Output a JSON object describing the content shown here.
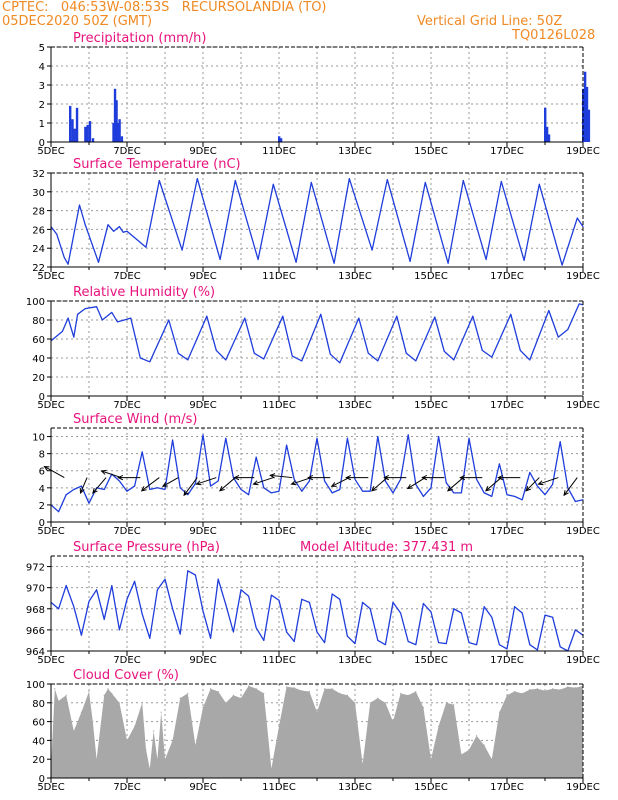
{
  "header": {
    "station_line": "CPTEC:   046:53W-08:53S   RECURSOLANDIA (TO)",
    "run_line": "05DEC2020 50Z (GMT)",
    "grid_line": "Vertical Grid Line: 50Z",
    "code": "TQ0126L028"
  },
  "colors": {
    "header": "#f08a24",
    "title": "#e8127c",
    "line": "#1f3ddb",
    "bar": "#1f3ddb",
    "cloud": "#a8a8a8",
    "arrow": "#000000"
  },
  "x_ticks": [
    "5DEC",
    "7DEC",
    "9DEC",
    "11DEC",
    "13DEC",
    "15DEC",
    "17DEC",
    "19DEC"
  ],
  "chart_data": [
    {
      "id": "precip",
      "type": "bar",
      "title": "Precipitation (mm/h)",
      "ylim": [
        0,
        5
      ],
      "yticks": [
        0,
        1,
        2,
        3,
        4,
        5
      ],
      "x_unit": "days since 5DEC 00Z",
      "x": [
        0.5,
        0.56,
        0.62,
        0.68,
        0.9,
        0.96,
        1.02,
        1.1,
        1.64,
        1.68,
        1.72,
        1.76,
        1.8,
        1.86,
        6.0,
        6.05,
        13.0,
        13.05,
        13.1,
        14.0,
        14.05,
        14.1,
        14.15
      ],
      "values": [
        1.9,
        1.2,
        0.7,
        1.8,
        0.8,
        0.9,
        1.1,
        0.2,
        1.0,
        2.8,
        2.2,
        1.0,
        1.2,
        0.3,
        0.3,
        0.2,
        1.8,
        0.8,
        0.4,
        2.8,
        3.7,
        2.9,
        1.7
      ]
    },
    {
      "id": "temp",
      "type": "line",
      "title": "Surface Temperature (nC)",
      "ylim": [
        22,
        32
      ],
      "yticks": [
        22,
        24,
        26,
        28,
        30,
        32
      ],
      "x_unit": "days since 5DEC 00Z",
      "x": [
        0.0,
        0.15,
        0.35,
        0.45,
        0.75,
        0.9,
        1.25,
        1.5,
        1.65,
        1.8,
        1.9,
        2.0,
        2.5,
        2.85,
        3.45,
        3.85,
        4.45,
        4.85,
        5.45,
        5.85,
        6.45,
        6.85,
        7.45,
        7.85,
        8.45,
        8.85,
        9.45,
        9.85,
        10.45,
        10.85,
        11.45,
        11.85,
        12.45,
        12.85,
        13.45,
        13.85,
        14.0
      ],
      "values": [
        26.3,
        25.5,
        23.0,
        22.3,
        28.6,
        26.5,
        22.5,
        26.5,
        25.8,
        26.3,
        25.7,
        25.8,
        24.1,
        31.2,
        23.8,
        31.4,
        22.8,
        31.2,
        22.8,
        30.8,
        22.5,
        31.0,
        22.4,
        31.4,
        23.8,
        31.3,
        22.6,
        31.0,
        22.4,
        31.2,
        22.8,
        31.1,
        22.7,
        30.8,
        22.2,
        27.2,
        26.3
      ]
    },
    {
      "id": "rh",
      "type": "line",
      "title": "Relative Humidity (%)",
      "ylim": [
        0,
        100
      ],
      "yticks": [
        0,
        20,
        40,
        60,
        80,
        100
      ],
      "x_unit": "days since 5DEC 00Z",
      "x": [
        0.0,
        0.3,
        0.45,
        0.6,
        0.7,
        0.9,
        1.2,
        1.35,
        1.6,
        1.75,
        2.1,
        2.35,
        2.6,
        3.1,
        3.35,
        3.6,
        4.1,
        4.35,
        4.6,
        5.1,
        5.35,
        5.6,
        6.1,
        6.35,
        6.6,
        7.1,
        7.35,
        7.6,
        8.1,
        8.35,
        8.6,
        9.1,
        9.35,
        9.6,
        10.1,
        10.35,
        10.6,
        11.1,
        11.35,
        11.6,
        12.1,
        12.35,
        12.6,
        13.1,
        13.35,
        13.6,
        13.9,
        14.0
      ],
      "values": [
        58,
        68,
        82,
        62,
        86,
        92,
        94,
        80,
        88,
        78,
        82,
        40,
        36,
        80,
        45,
        38,
        84,
        48,
        38,
        82,
        45,
        39,
        84,
        42,
        37,
        86,
        44,
        35,
        82,
        45,
        37,
        84,
        45,
        37,
        83,
        47,
        38,
        84,
        48,
        41,
        86,
        48,
        38,
        90,
        62,
        70,
        97,
        96
      ]
    },
    {
      "id": "wind",
      "type": "line",
      "title": "Surface Wind (m/s)",
      "ylim": [
        0,
        11
      ],
      "yticks": [
        0,
        2,
        4,
        6,
        8,
        10
      ],
      "x_unit": "days since 5DEC 00Z",
      "x": [
        0.0,
        0.2,
        0.4,
        0.6,
        0.8,
        1.0,
        1.2,
        1.4,
        1.6,
        1.8,
        2.0,
        2.2,
        2.4,
        2.6,
        2.8,
        3.0,
        3.2,
        3.4,
        3.6,
        3.8,
        4.0,
        4.2,
        4.4,
        4.6,
        4.8,
        5.0,
        5.2,
        5.4,
        5.6,
        5.8,
        6.0,
        6.2,
        6.4,
        6.6,
        6.8,
        7.0,
        7.2,
        7.4,
        7.6,
        7.8,
        8.0,
        8.2,
        8.4,
        8.6,
        8.8,
        9.0,
        9.2,
        9.4,
        9.6,
        9.8,
        10.0,
        10.2,
        10.4,
        10.6,
        10.8,
        11.0,
        11.2,
        11.4,
        11.6,
        11.8,
        12.0,
        12.2,
        12.4,
        12.6,
        12.8,
        13.0,
        13.2,
        13.4,
        13.6,
        13.8,
        14.0
      ],
      "values": [
        2.0,
        1.2,
        3.2,
        3.8,
        4.2,
        2.2,
        4.0,
        3.8,
        5.6,
        4.8,
        3.6,
        4.2,
        8.2,
        3.8,
        4.0,
        3.8,
        9.6,
        4.0,
        3.2,
        4.5,
        10.2,
        4.2,
        4.8,
        9.8,
        5.2,
        3.8,
        3.2,
        7.6,
        4.0,
        3.4,
        3.6,
        9.0,
        5.0,
        3.6,
        4.8,
        9.8,
        4.8,
        3.4,
        3.8,
        9.8,
        5.0,
        3.6,
        3.6,
        10.0,
        4.8,
        3.4,
        5.0,
        10.2,
        4.4,
        3.0,
        4.0,
        10.0,
        4.6,
        3.4,
        3.4,
        9.8,
        5.0,
        3.4,
        3.0,
        6.8,
        3.2,
        3.0,
        2.6,
        5.8,
        4.2,
        3.2,
        4.4,
        9.4,
        4.0,
        2.4,
        2.6
      ],
      "arrows": [
        {
          "x": 0.35,
          "u": -0.9,
          "v": 0.5
        },
        {
          "x": 0.95,
          "u": -0.3,
          "v": -0.7
        },
        {
          "x": 1.45,
          "u": -0.6,
          "v": -0.7
        },
        {
          "x": 1.85,
          "u": -0.9,
          "v": 0.3
        },
        {
          "x": 2.35,
          "u": -1.0,
          "v": 0.0
        },
        {
          "x": 2.85,
          "u": -0.8,
          "v": -0.6
        },
        {
          "x": 3.35,
          "u": -0.7,
          "v": -0.4
        },
        {
          "x": 3.85,
          "u": -0.6,
          "v": -0.8
        },
        {
          "x": 4.35,
          "u": -0.9,
          "v": -0.3
        },
        {
          "x": 4.85,
          "u": -0.7,
          "v": -0.6
        },
        {
          "x": 5.35,
          "u": -0.9,
          "v": 0.0
        },
        {
          "x": 5.85,
          "u": -0.9,
          "v": -0.3
        },
        {
          "x": 6.35,
          "u": -1.0,
          "v": 0.1
        },
        {
          "x": 6.85,
          "u": -0.9,
          "v": -0.3
        },
        {
          "x": 7.35,
          "u": -1.0,
          "v": 0.0
        },
        {
          "x": 7.85,
          "u": -0.8,
          "v": -0.4
        },
        {
          "x": 8.35,
          "u": -1.0,
          "v": 0.0
        },
        {
          "x": 8.85,
          "u": -0.7,
          "v": -0.6
        },
        {
          "x": 9.35,
          "u": -1.0,
          "v": 0.0
        },
        {
          "x": 9.85,
          "u": -0.8,
          "v": -0.5
        },
        {
          "x": 10.35,
          "u": -1.0,
          "v": 0.0
        },
        {
          "x": 10.85,
          "u": -0.7,
          "v": -0.6
        },
        {
          "x": 11.35,
          "u": -1.0,
          "v": 0.0
        },
        {
          "x": 11.85,
          "u": -0.7,
          "v": -0.6
        },
        {
          "x": 12.35,
          "u": -1.0,
          "v": 0.0
        },
        {
          "x": 12.85,
          "u": -0.6,
          "v": -0.6
        },
        {
          "x": 13.35,
          "u": -0.9,
          "v": -0.3
        },
        {
          "x": 13.85,
          "u": -0.6,
          "v": -0.8
        }
      ]
    },
    {
      "id": "pres",
      "type": "line",
      "title": "Surface Pressure (hPa)",
      "subtitle": "Model Altitude: 377.431  m",
      "ylim": [
        964,
        973
      ],
      "yticks": [
        964,
        966,
        968,
        970,
        972
      ],
      "x_unit": "days since 5DEC 00Z",
      "x": [
        0.0,
        0.2,
        0.4,
        0.6,
        0.8,
        1.0,
        1.2,
        1.4,
        1.6,
        1.8,
        2.0,
        2.2,
        2.4,
        2.6,
        2.8,
        3.0,
        3.2,
        3.4,
        3.6,
        3.8,
        4.0,
        4.2,
        4.4,
        4.6,
        4.8,
        5.0,
        5.2,
        5.4,
        5.6,
        5.8,
        6.0,
        6.2,
        6.4,
        6.6,
        6.8,
        7.0,
        7.2,
        7.4,
        7.6,
        7.8,
        8.0,
        8.2,
        8.4,
        8.6,
        8.8,
        9.0,
        9.2,
        9.4,
        9.6,
        9.8,
        10.0,
        10.2,
        10.4,
        10.6,
        10.8,
        11.0,
        11.2,
        11.4,
        11.6,
        11.8,
        12.0,
        12.2,
        12.4,
        12.6,
        12.8,
        13.0,
        13.2,
        13.4,
        13.6,
        13.8,
        14.0
      ],
      "values": [
        968.6,
        968.0,
        970.2,
        968.2,
        965.5,
        968.7,
        969.8,
        967.0,
        970.2,
        966.0,
        968.9,
        970.6,
        967.5,
        965.2,
        969.8,
        970.8,
        968.0,
        965.6,
        971.6,
        971.2,
        967.8,
        965.2,
        970.8,
        968.4,
        965.8,
        969.8,
        969.2,
        966.2,
        965.0,
        969.3,
        968.8,
        965.8,
        964.9,
        968.9,
        968.6,
        965.8,
        964.8,
        969.4,
        968.9,
        965.4,
        964.7,
        968.6,
        968.0,
        965.0,
        964.6,
        968.6,
        967.6,
        964.9,
        964.6,
        968.5,
        967.7,
        964.8,
        964.7,
        968.0,
        967.6,
        964.8,
        964.6,
        968.2,
        967.2,
        964.6,
        964.2,
        968.2,
        967.6,
        964.6,
        964.1,
        967.4,
        967.2,
        964.4,
        964.0,
        966.0,
        965.5
      ]
    },
    {
      "id": "cloud",
      "type": "area",
      "title": "Cloud Cover (%)",
      "ylim": [
        0,
        100
      ],
      "yticks": [
        0,
        20,
        40,
        60,
        80,
        100
      ],
      "x_unit": "days since 5DEC 00Z",
      "x": [
        0.0,
        0.1,
        0.2,
        0.4,
        0.6,
        0.8,
        1.0,
        1.1,
        1.2,
        1.4,
        1.5,
        1.6,
        1.8,
        2.0,
        2.2,
        2.4,
        2.5,
        2.6,
        2.7,
        2.8,
        2.9,
        3.0,
        3.2,
        3.4,
        3.6,
        3.8,
        4.0,
        4.2,
        4.4,
        4.6,
        4.8,
        5.0,
        5.2,
        5.4,
        5.6,
        5.8,
        6.0,
        6.2,
        6.4,
        6.6,
        6.8,
        7.0,
        7.2,
        7.4,
        7.6,
        7.8,
        8.0,
        8.2,
        8.4,
        8.6,
        8.8,
        9.0,
        9.2,
        9.4,
        9.6,
        9.8,
        10.0,
        10.2,
        10.4,
        10.6,
        10.8,
        11.0,
        11.2,
        11.4,
        11.6,
        11.8,
        12.0,
        12.2,
        12.4,
        12.6,
        12.8,
        13.0,
        13.2,
        13.4,
        13.6,
        13.8,
        14.0
      ],
      "values": [
        10,
        95,
        82,
        88,
        50,
        70,
        92,
        60,
        20,
        88,
        95,
        90,
        80,
        40,
        55,
        80,
        30,
        10,
        50,
        20,
        70,
        20,
        40,
        85,
        90,
        35,
        75,
        95,
        92,
        80,
        88,
        85,
        98,
        95,
        90,
        10,
        55,
        97,
        96,
        93,
        92,
        70,
        95,
        95,
        90,
        88,
        80,
        15,
        80,
        85,
        80,
        60,
        90,
        88,
        92,
        75,
        20,
        55,
        80,
        78,
        25,
        30,
        45,
        35,
        20,
        70,
        88,
        92,
        90,
        94,
        95,
        93,
        95,
        94,
        97,
        96,
        98
      ]
    }
  ]
}
